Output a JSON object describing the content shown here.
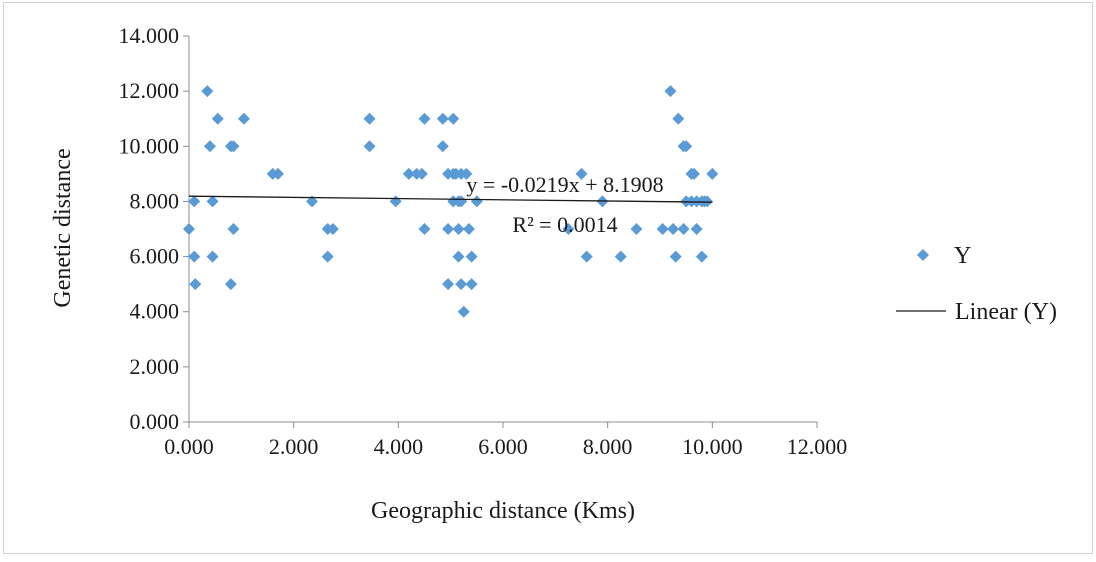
{
  "chart_data": {
    "type": "scatter",
    "title": "",
    "xlabel": "Geographic distance (Kms)",
    "ylabel": "Genetic distance",
    "xlim": [
      0,
      12
    ],
    "ylim": [
      0,
      14
    ],
    "x_ticks": [
      "0.000",
      "2.000",
      "4.000",
      "6.000",
      "8.000",
      "10.000",
      "12.000"
    ],
    "y_ticks": [
      "0.000",
      "2.000",
      "4.000",
      "6.000",
      "8.000",
      "10.000",
      "12.000",
      "14.000"
    ],
    "grid": false,
    "legend_position": "right",
    "series": [
      {
        "name": "Y",
        "type": "scatter",
        "marker": "diamond",
        "color": "#5b9bd5",
        "points": [
          [
            0.0,
            7
          ],
          [
            0.1,
            8
          ],
          [
            0.1,
            6
          ],
          [
            0.12,
            5
          ],
          [
            0.35,
            12
          ],
          [
            0.4,
            10
          ],
          [
            0.45,
            8
          ],
          [
            0.45,
            6
          ],
          [
            0.55,
            11
          ],
          [
            0.8,
            10
          ],
          [
            0.85,
            10
          ],
          [
            0.8,
            5
          ],
          [
            0.85,
            7
          ],
          [
            1.05,
            11
          ],
          [
            1.6,
            9
          ],
          [
            1.7,
            9
          ],
          [
            2.35,
            8
          ],
          [
            2.65,
            7
          ],
          [
            2.75,
            7
          ],
          [
            2.65,
            6
          ],
          [
            3.45,
            11
          ],
          [
            3.45,
            10
          ],
          [
            3.95,
            8
          ],
          [
            4.2,
            9
          ],
          [
            4.35,
            9
          ],
          [
            4.45,
            9
          ],
          [
            4.5,
            11
          ],
          [
            4.5,
            7
          ],
          [
            4.85,
            11
          ],
          [
            4.85,
            10
          ],
          [
            4.95,
            9
          ],
          [
            5.05,
            11
          ],
          [
            5.05,
            9
          ],
          [
            5.1,
            9
          ],
          [
            5.2,
            9
          ],
          [
            5.3,
            9
          ],
          [
            4.95,
            7
          ],
          [
            5.05,
            8
          ],
          [
            5.15,
            8
          ],
          [
            5.2,
            8
          ],
          [
            5.15,
            7
          ],
          [
            5.15,
            6
          ],
          [
            4.95,
            5
          ],
          [
            5.2,
            5
          ],
          [
            5.25,
            4
          ],
          [
            5.35,
            7
          ],
          [
            5.4,
            6
          ],
          [
            5.4,
            5
          ],
          [
            5.5,
            8
          ],
          [
            7.25,
            7
          ],
          [
            7.5,
            9
          ],
          [
            7.6,
            6
          ],
          [
            7.9,
            8
          ],
          [
            8.25,
            6
          ],
          [
            8.55,
            7
          ],
          [
            9.05,
            7
          ],
          [
            9.2,
            12
          ],
          [
            9.25,
            7
          ],
          [
            9.3,
            6
          ],
          [
            9.35,
            11
          ],
          [
            9.45,
            10
          ],
          [
            9.5,
            10
          ],
          [
            9.45,
            7
          ],
          [
            9.5,
            8
          ],
          [
            9.6,
            9
          ],
          [
            9.65,
            9
          ],
          [
            9.6,
            8
          ],
          [
            9.7,
            8
          ],
          [
            9.7,
            7
          ],
          [
            9.8,
            8
          ],
          [
            9.85,
            8
          ],
          [
            9.8,
            6
          ],
          [
            9.9,
            8
          ],
          [
            10.0,
            9
          ]
        ]
      },
      {
        "name": "Linear (Y)",
        "type": "line",
        "color": "#1a1a1a",
        "x": [
          0,
          10
        ],
        "y": [
          8.1908,
          7.9718
        ]
      }
    ],
    "annotations": {
      "equation": "y = -0.0219x + 8.1908",
      "r_squared": "R² = 0.0014"
    }
  }
}
